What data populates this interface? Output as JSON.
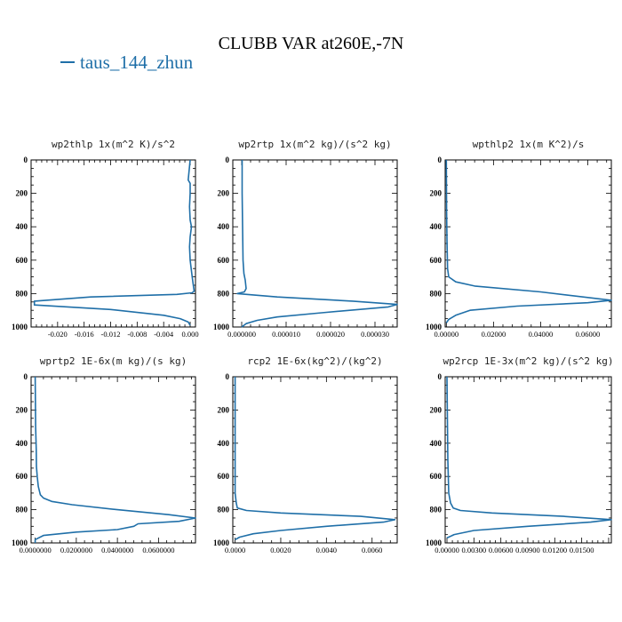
{
  "title": "CLUBB VAR at260E,-7N",
  "legend": {
    "label": "taus_144_zhun",
    "color": "#1f6fa8"
  },
  "chart_data": [
    {
      "type": "line",
      "title": "wp2thlp  1x(m^2 K)/s^2",
      "xlim": [
        -0.024,
        0.0008
      ],
      "ylim": [
        1000,
        0
      ],
      "yticks": [
        "0",
        "200",
        "400",
        "600",
        "800",
        "1000"
      ],
      "xticks": [
        "-0.020",
        "-0.016",
        "-0.012",
        "-0.008",
        "-0.004",
        "0.000"
      ],
      "xtick_values": [
        -0.02,
        -0.016,
        -0.012,
        -0.008,
        -0.004,
        0.0
      ],
      "series": [
        {
          "x": [
            0.0,
            -0.0003,
            0.0,
            0.0,
            -0.0001,
            0.0,
            0.0002,
            0.0,
            -0.0001,
            0.0,
            0.0003,
            0.0005,
            0.0006,
            0.0003,
            -0.002,
            -0.015,
            -0.0235,
            -0.0235,
            -0.012,
            -0.004,
            -0.0015,
            -0.0003,
            0.0
          ],
          "y": [
            0,
            120,
            140,
            200,
            280,
            360,
            400,
            460,
            520,
            600,
            700,
            760,
            785,
            795,
            805,
            820,
            845,
            868,
            895,
            930,
            950,
            970,
            990
          ]
        }
      ]
    },
    {
      "type": "line",
      "title": "wp2rtp  1x(m^2 kg)/(s^2 kg)",
      "xlim": [
        -2e-06,
        3.5e-05
      ],
      "ylim": [
        1000,
        0
      ],
      "yticks": [
        "0",
        "200",
        "400",
        "600",
        "800",
        "1000"
      ],
      "xticks": [
        "0.000000",
        "0.000010",
        "0.000020",
        "0.000030"
      ],
      "xtick_values": [
        0,
        1e-05,
        2e-05,
        3e-05
      ],
      "series": [
        {
          "x": [
            1e-07,
            1e-07,
            2e-07,
            3e-07,
            5e-07,
            8e-07,
            1e-06,
            6e-07,
            -1e-06,
            8e-06,
            2.5e-05,
            3.5e-05,
            3.3e-05,
            1.8e-05,
            8e-06,
            3.5e-06,
            1e-06,
            0.0
          ],
          "y": [
            0,
            200,
            400,
            600,
            680,
            720,
            770,
            790,
            800,
            820,
            845,
            865,
            880,
            915,
            940,
            960,
            980,
            1000
          ]
        }
      ]
    },
    {
      "type": "line",
      "title": "wpthlp2  1x(m K^2)/s",
      "xlim": [
        -0.0005,
        0.07
      ],
      "ylim": [
        1000,
        0
      ],
      "yticks": [
        "0",
        "200",
        "400",
        "600",
        "800",
        "1000"
      ],
      "xticks": [
        "0.00000",
        "0.02000",
        "0.04000",
        "0.06000"
      ],
      "xtick_values": [
        0,
        0.02,
        0.04,
        0.06
      ],
      "series": [
        {
          "x": [
            0.0,
            0.0001,
            0.0003,
            0.0005,
            0.001,
            0.004,
            0.012,
            0.04,
            0.07,
            0.06,
            0.03,
            0.01,
            0.004,
            0.001,
            0.0
          ],
          "y": [
            0,
            300,
            500,
            650,
            700,
            730,
            755,
            790,
            840,
            855,
            875,
            900,
            930,
            955,
            975
          ]
        }
      ]
    },
    {
      "type": "line",
      "title": "wprtp2  1E-6x(m kg)/(s kg)",
      "xlim": [
        -0.002,
        0.078
      ],
      "ylim": [
        1000,
        0
      ],
      "yticks": [
        "0",
        "200",
        "400",
        "600",
        "800",
        "1000"
      ],
      "xticks": [
        "0.0000000",
        "0.0200000",
        "0.0400000",
        "0.0600000"
      ],
      "xtick_values": [
        0,
        0.02,
        0.04,
        0.06
      ],
      "series": [
        {
          "x": [
            0.0,
            0.0002,
            0.0005,
            0.0006,
            0.001,
            0.0015,
            0.0025,
            0.004,
            0.008,
            0.018,
            0.04,
            0.065,
            0.078,
            0.07,
            0.05,
            0.048,
            0.04,
            0.02,
            0.004,
            0.0,
            0.0
          ],
          "y": [
            0,
            300,
            440,
            540,
            600,
            660,
            710,
            730,
            750,
            770,
            800,
            830,
            850,
            870,
            885,
            900,
            920,
            935,
            955,
            980,
            1000
          ]
        }
      ]
    },
    {
      "type": "line",
      "title": "rcp2  1E-6x(kg^2)/(kg^2)",
      "xlim": [
        -0.0001,
        0.0071
      ],
      "ylim": [
        1000,
        0
      ],
      "yticks": [
        "0",
        "200",
        "400",
        "600",
        "800",
        "1000"
      ],
      "xticks": [
        "0.0000",
        "0.0020",
        "0.0040",
        "0.0060"
      ],
      "xtick_values": [
        0,
        0.002,
        0.004,
        0.006
      ],
      "series": [
        {
          "x": [
            0.0,
            0.0,
            5e-05,
            0.0001,
            0.0005,
            0.002,
            0.0055,
            0.007,
            0.0065,
            0.004,
            0.002,
            0.0008,
            0.0002,
            0.0
          ],
          "y": [
            0,
            700,
            760,
            790,
            805,
            820,
            840,
            860,
            875,
            900,
            925,
            945,
            965,
            980
          ]
        }
      ]
    },
    {
      "type": "line",
      "title": "wp2rcp  1E-3x(m^2 kg)/(s^2 kg)",
      "xlim": [
        -0.0002,
        0.0183
      ],
      "ylim": [
        1000,
        0
      ],
      "yticks": [
        "0",
        "200",
        "400",
        "600",
        "800",
        "1000"
      ],
      "xticks": [
        "0.00000",
        "0.00300",
        "0.00600",
        "0.00900",
        "0.01200",
        "0.01500"
      ],
      "xtick_values": [
        0,
        0.003,
        0.006,
        0.009,
        0.012,
        0.015
      ],
      "series": [
        {
          "x": [
            0.0,
            0.0001,
            0.0002,
            0.0004,
            0.0007,
            0.0015,
            0.005,
            0.013,
            0.0183,
            0.016,
            0.009,
            0.003,
            0.0008,
            0.0
          ],
          "y": [
            0,
            500,
            700,
            760,
            790,
            805,
            820,
            840,
            860,
            875,
            900,
            925,
            950,
            970
          ]
        }
      ]
    }
  ]
}
